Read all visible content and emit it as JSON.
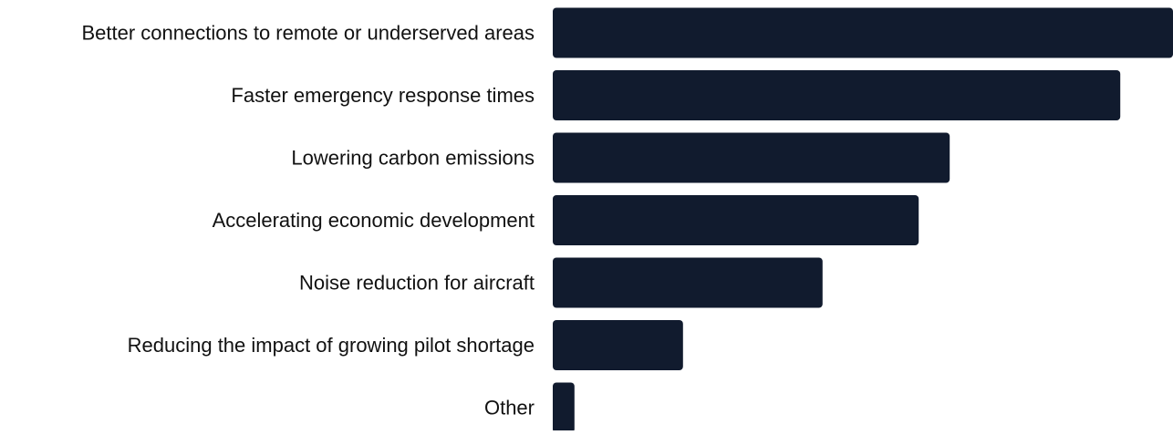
{
  "chart_data": {
    "type": "bar",
    "orientation": "horizontal",
    "categories": [
      "Better connections to remote or underserved areas",
      "Faster emergency response times",
      "Lowering carbon emissions",
      "Accelerating economic development",
      "Noise reduction for aircraft",
      "Reducing the impact of growing pilot shortage",
      "Other"
    ],
    "values": [
      100,
      91.5,
      64,
      59,
      43.5,
      21,
      3.5
    ],
    "xlim": [
      0,
      100
    ],
    "grid": false,
    "legend": "none",
    "title": "",
    "xlabel": "",
    "ylabel": ""
  },
  "colors": {
    "bar": "#111b2e",
    "label": "#111111"
  }
}
